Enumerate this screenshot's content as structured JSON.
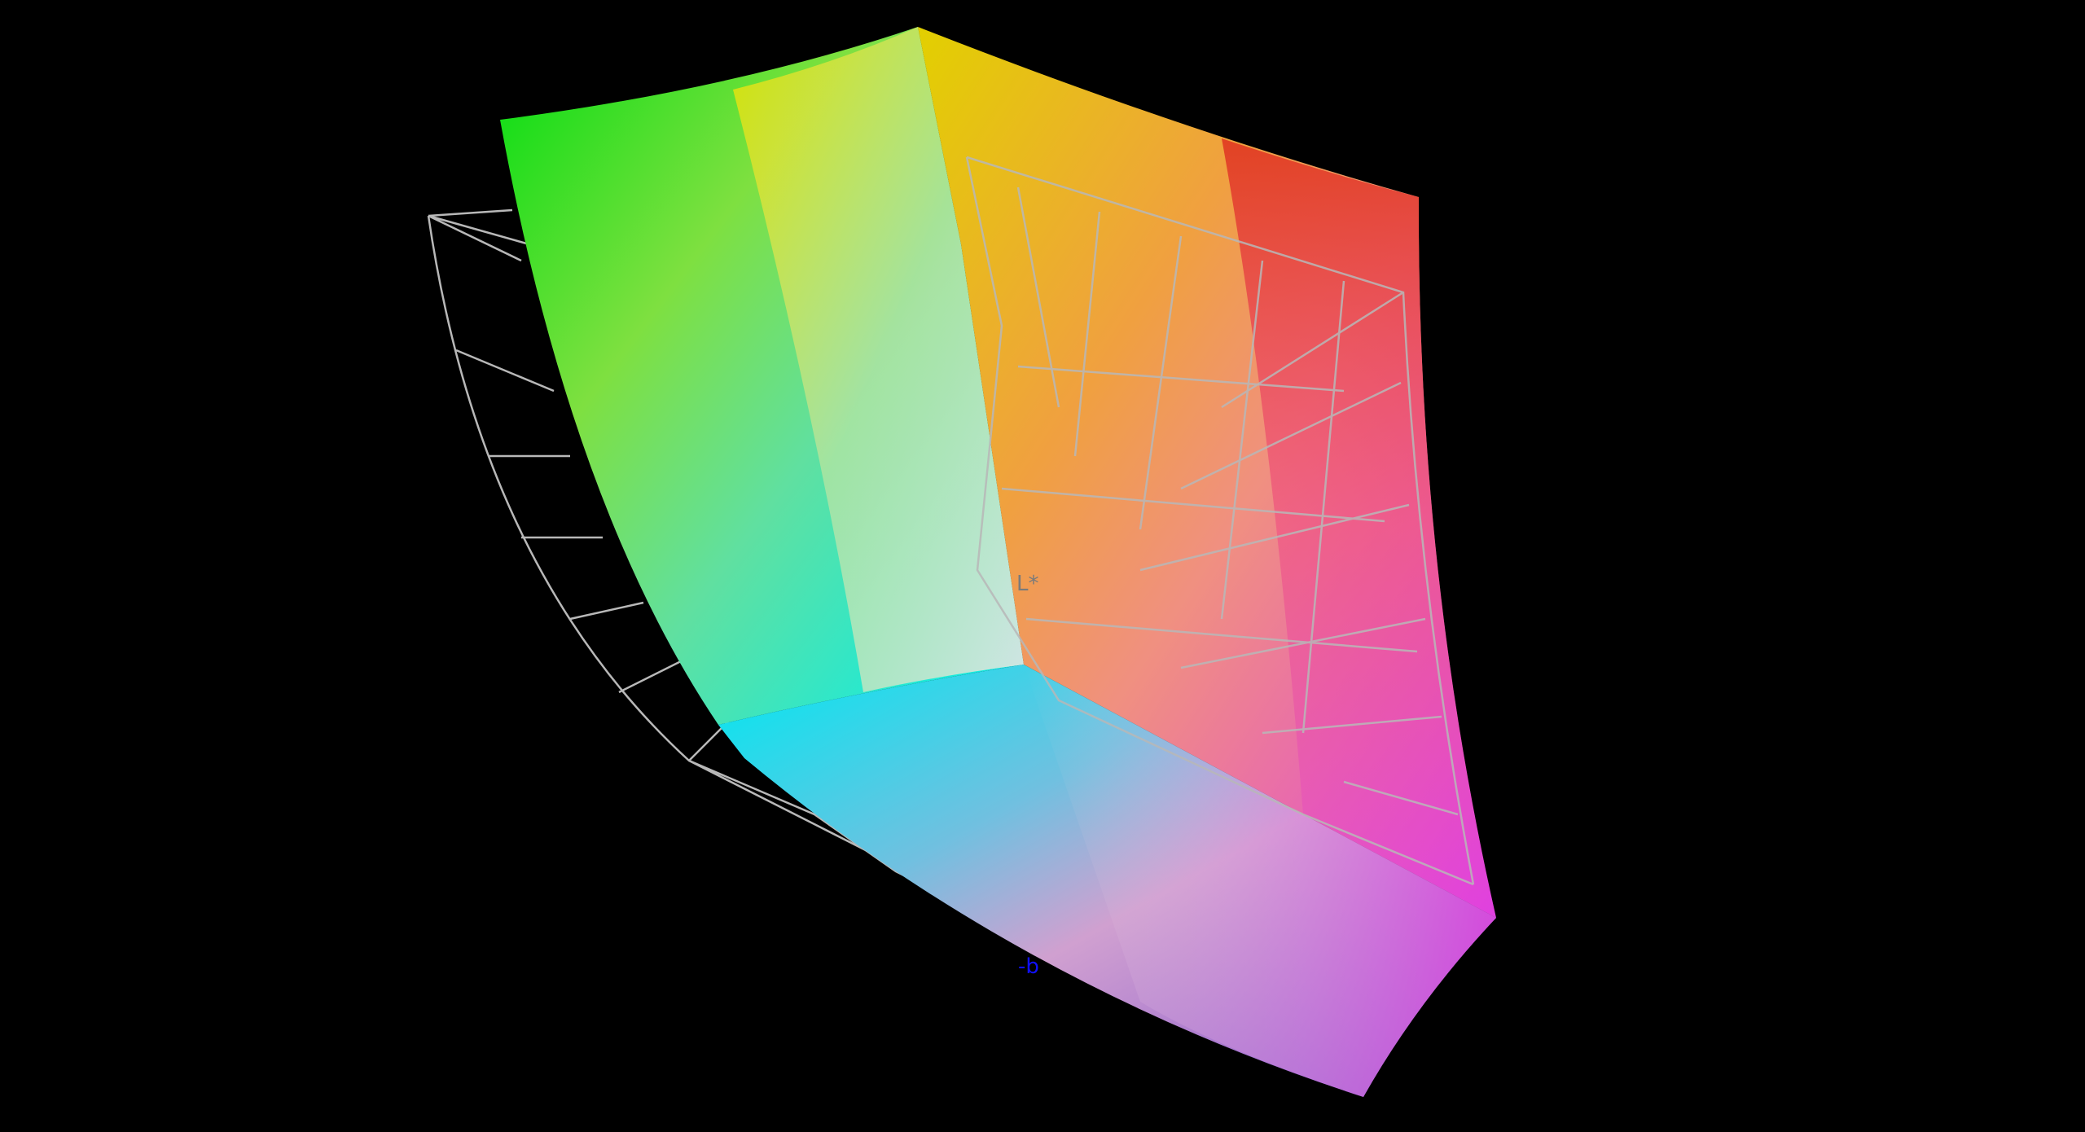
{
  "axes": {
    "l_label": "L*",
    "b_label": "-b"
  },
  "colors": {
    "background": "#000000",
    "wireframe": "#b8b8b8",
    "green": "#00dd10",
    "yellow": "#e2e200",
    "red": "#e03820",
    "magenta": "#e040e0",
    "purple": "#8050d0",
    "cyan": "#00f0f0",
    "white": "#e8e4e4",
    "l_axis_label": "#7a7a7a",
    "b_axis_label": "#1010ff"
  }
}
